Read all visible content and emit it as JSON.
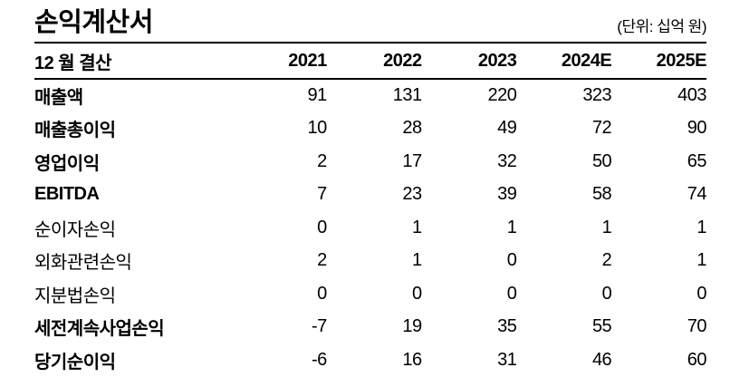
{
  "header": {
    "title": "손익계산서",
    "unit": "(단위: 십억 원)"
  },
  "table": {
    "columns": [
      "12 월 결산",
      "2021",
      "2022",
      "2023",
      "2024E",
      "2025E"
    ],
    "rows": [
      {
        "label": "매출액",
        "values": [
          91,
          131,
          220,
          323,
          403
        ],
        "bold": true
      },
      {
        "label": "매출총이익",
        "values": [
          10,
          28,
          49,
          72,
          90
        ],
        "bold": true
      },
      {
        "label": "영업이익",
        "values": [
          2,
          17,
          32,
          50,
          65
        ],
        "bold": true
      },
      {
        "label": "EBITDA",
        "values": [
          7,
          23,
          39,
          58,
          74
        ],
        "bold": true
      },
      {
        "label": "순이자손익",
        "values": [
          0,
          1,
          1,
          1,
          1
        ],
        "bold": false
      },
      {
        "label": "외화관련손익",
        "values": [
          2,
          1,
          0,
          2,
          1
        ],
        "bold": false
      },
      {
        "label": "지분법손익",
        "values": [
          0,
          0,
          0,
          0,
          0
        ],
        "bold": false
      },
      {
        "label": "세전계속사업손익",
        "values": [
          -7,
          19,
          35,
          55,
          70
        ],
        "bold": true
      },
      {
        "label": "당기순이익",
        "values": [
          -6,
          16,
          31,
          46,
          60
        ],
        "bold": true
      }
    ]
  }
}
